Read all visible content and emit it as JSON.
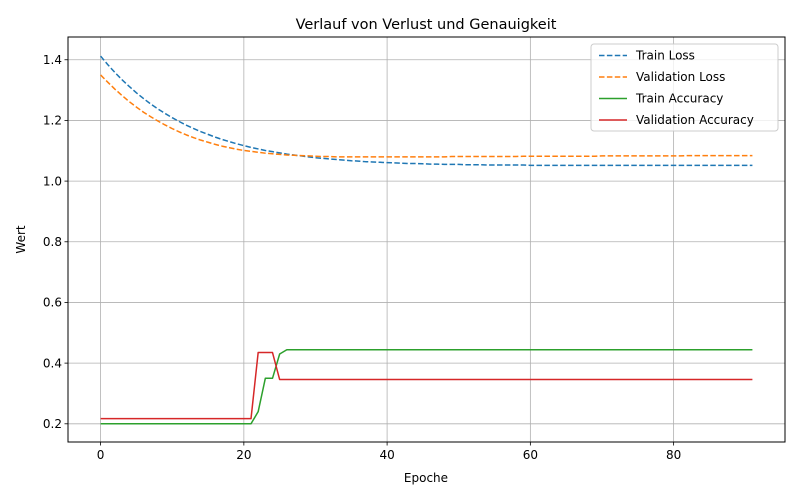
{
  "chart_data": {
    "type": "line",
    "title": "Verlauf von Verlust und Genauigkeit",
    "xlabel": "Epoche",
    "ylabel": "Wert",
    "xlim": [
      -4.55,
      95.55
    ],
    "ylim": [
      0.14,
      1.475
    ],
    "xticks": [
      0,
      20,
      40,
      60,
      80
    ],
    "yticks": [
      0.2,
      0.4,
      0.6,
      0.8,
      1.0,
      1.2,
      1.4
    ],
    "grid": true,
    "legend_position": "top-right",
    "x": [
      0,
      1,
      2,
      3,
      4,
      5,
      6,
      7,
      8,
      9,
      10,
      11,
      12,
      13,
      14,
      15,
      16,
      17,
      18,
      19,
      20,
      21,
      22,
      23,
      24,
      25,
      26,
      27,
      28,
      29,
      30,
      31,
      32,
      33,
      34,
      35,
      36,
      37,
      38,
      39,
      40,
      41,
      42,
      43,
      44,
      45,
      46,
      47,
      48,
      49,
      50,
      51,
      52,
      53,
      54,
      55,
      56,
      57,
      58,
      59,
      60,
      61,
      62,
      63,
      64,
      65,
      66,
      67,
      68,
      69,
      70,
      71,
      72,
      73,
      74,
      75,
      76,
      77,
      78,
      79,
      80,
      81,
      82,
      83,
      84,
      85,
      86,
      87,
      88,
      89,
      90,
      91
    ],
    "series": [
      {
        "name": "Train Loss",
        "color": "#1f77b4",
        "dash": true,
        "values": [
          1.412,
          1.384,
          1.358,
          1.334,
          1.312,
          1.291,
          1.272,
          1.254,
          1.238,
          1.223,
          1.209,
          1.196,
          1.184,
          1.173,
          1.163,
          1.154,
          1.145,
          1.137,
          1.13,
          1.123,
          1.117,
          1.111,
          1.106,
          1.101,
          1.097,
          1.093,
          1.089,
          1.086,
          1.083,
          1.08,
          1.077,
          1.075,
          1.073,
          1.071,
          1.069,
          1.067,
          1.066,
          1.064,
          1.063,
          1.062,
          1.061,
          1.06,
          1.059,
          1.058,
          1.058,
          1.057,
          1.056,
          1.056,
          1.055,
          1.055,
          1.055,
          1.054,
          1.054,
          1.054,
          1.053,
          1.053,
          1.053,
          1.053,
          1.053,
          1.053,
          1.052,
          1.052,
          1.052,
          1.052,
          1.052,
          1.052,
          1.052,
          1.052,
          1.052,
          1.052,
          1.052,
          1.052,
          1.052,
          1.052,
          1.052,
          1.052,
          1.052,
          1.052,
          1.052,
          1.052,
          1.052,
          1.052,
          1.052,
          1.052,
          1.052,
          1.052,
          1.052,
          1.052,
          1.052,
          1.052,
          1.052,
          1.052
        ]
      },
      {
        "name": "Validation Loss",
        "color": "#ff7f0e",
        "dash": true,
        "values": [
          1.35,
          1.326,
          1.303,
          1.282,
          1.262,
          1.244,
          1.227,
          1.212,
          1.198,
          1.185,
          1.173,
          1.162,
          1.152,
          1.143,
          1.135,
          1.128,
          1.121,
          1.115,
          1.11,
          1.105,
          1.101,
          1.098,
          1.095,
          1.092,
          1.09,
          1.088,
          1.086,
          1.085,
          1.084,
          1.083,
          1.082,
          1.081,
          1.081,
          1.08,
          1.08,
          1.08,
          1.08,
          1.08,
          1.08,
          1.08,
          1.08,
          1.08,
          1.08,
          1.08,
          1.08,
          1.08,
          1.08,
          1.08,
          1.08,
          1.081,
          1.081,
          1.081,
          1.081,
          1.081,
          1.081,
          1.081,
          1.081,
          1.081,
          1.081,
          1.082,
          1.082,
          1.082,
          1.082,
          1.082,
          1.082,
          1.082,
          1.082,
          1.082,
          1.082,
          1.082,
          1.083,
          1.083,
          1.083,
          1.083,
          1.083,
          1.083,
          1.083,
          1.083,
          1.083,
          1.083,
          1.083,
          1.083,
          1.084,
          1.084,
          1.084,
          1.084,
          1.084,
          1.084,
          1.084,
          1.084,
          1.084,
          1.084
        ]
      },
      {
        "name": "Train Accuracy",
        "color": "#2ca02c",
        "dash": false,
        "values": [
          0.2,
          0.2,
          0.2,
          0.2,
          0.2,
          0.2,
          0.2,
          0.2,
          0.2,
          0.2,
          0.2,
          0.2,
          0.2,
          0.2,
          0.2,
          0.2,
          0.2,
          0.2,
          0.2,
          0.2,
          0.2,
          0.2,
          0.24,
          0.35,
          0.35,
          0.43,
          0.444,
          0.444,
          0.444,
          0.444,
          0.444,
          0.444,
          0.444,
          0.444,
          0.444,
          0.444,
          0.444,
          0.444,
          0.444,
          0.444,
          0.444,
          0.444,
          0.444,
          0.444,
          0.444,
          0.444,
          0.444,
          0.444,
          0.444,
          0.444,
          0.444,
          0.444,
          0.444,
          0.444,
          0.444,
          0.444,
          0.444,
          0.444,
          0.444,
          0.444,
          0.444,
          0.444,
          0.444,
          0.444,
          0.444,
          0.444,
          0.444,
          0.444,
          0.444,
          0.444,
          0.444,
          0.444,
          0.444,
          0.444,
          0.444,
          0.444,
          0.444,
          0.444,
          0.444,
          0.444,
          0.444,
          0.444,
          0.444,
          0.444,
          0.444,
          0.444,
          0.444,
          0.444,
          0.444,
          0.444,
          0.444,
          0.444
        ]
      },
      {
        "name": "Validation Accuracy",
        "color": "#d62728",
        "dash": false,
        "values": [
          0.217,
          0.217,
          0.217,
          0.217,
          0.217,
          0.217,
          0.217,
          0.217,
          0.217,
          0.217,
          0.217,
          0.217,
          0.217,
          0.217,
          0.217,
          0.217,
          0.217,
          0.217,
          0.217,
          0.217,
          0.217,
          0.217,
          0.435,
          0.435,
          0.435,
          0.346,
          0.346,
          0.346,
          0.346,
          0.346,
          0.346,
          0.346,
          0.346,
          0.346,
          0.346,
          0.346,
          0.346,
          0.346,
          0.346,
          0.346,
          0.346,
          0.346,
          0.346,
          0.346,
          0.346,
          0.346,
          0.346,
          0.346,
          0.346,
          0.346,
          0.346,
          0.346,
          0.346,
          0.346,
          0.346,
          0.346,
          0.346,
          0.346,
          0.346,
          0.346,
          0.346,
          0.346,
          0.346,
          0.346,
          0.346,
          0.346,
          0.346,
          0.346,
          0.346,
          0.346,
          0.346,
          0.346,
          0.346,
          0.346,
          0.346,
          0.346,
          0.346,
          0.346,
          0.346,
          0.346,
          0.346,
          0.346,
          0.346,
          0.346,
          0.346,
          0.346,
          0.346,
          0.346,
          0.346,
          0.346,
          0.346,
          0.346
        ]
      }
    ]
  }
}
